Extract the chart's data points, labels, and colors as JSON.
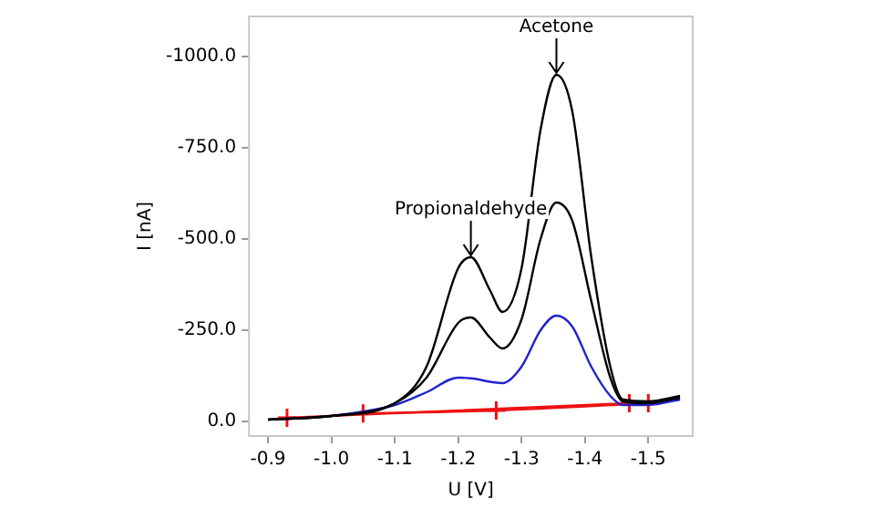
{
  "chart_data": {
    "type": "line",
    "xlabel": "U [V]",
    "ylabel": "I [nA]",
    "xlim": [
      -0.87,
      -1.57
    ],
    "ylim": [
      40,
      -1110
    ],
    "xticks": [
      {
        "value": -0.9,
        "label": "-0.9"
      },
      {
        "value": -1.0,
        "label": "-1.0"
      },
      {
        "value": -1.1,
        "label": "-1.1"
      },
      {
        "value": -1.2,
        "label": "-1.2"
      },
      {
        "value": -1.3,
        "label": "-1.3"
      },
      {
        "value": -1.4,
        "label": "-1.4"
      },
      {
        "value": -1.5,
        "label": "-1.5"
      }
    ],
    "yticks": [
      {
        "value": 0,
        "label": "0.0"
      },
      {
        "value": -250,
        "label": "-250.0"
      },
      {
        "value": -500,
        "label": "-500.0"
      },
      {
        "value": -750,
        "label": "-750.0"
      },
      {
        "value": -1000,
        "label": "-1000.0"
      }
    ],
    "grid": false,
    "legend": false,
    "marker": "none",
    "line_style": "solid",
    "annotations": [
      {
        "text": "Acetone",
        "x": -1.355,
        "y": -950
      },
      {
        "text": "Propionaldehyde",
        "x": -1.22,
        "y": -450
      }
    ],
    "series": [
      {
        "color": "#000000",
        "x": [
          -0.9,
          -1.0,
          -1.1,
          -1.15,
          -1.2,
          -1.22,
          -1.25,
          -1.27,
          -1.3,
          -1.33,
          -1.355,
          -1.38,
          -1.41,
          -1.44,
          -1.46,
          -1.5,
          -1.55
        ],
        "values": [
          -5,
          -15,
          -50,
          -150,
          -420,
          -450,
          -360,
          -300,
          -420,
          -800,
          -950,
          -850,
          -450,
          -150,
          -60,
          -55,
          -70
        ]
      },
      {
        "color": "#000000",
        "x": [
          -0.9,
          -1.0,
          -1.1,
          -1.15,
          -1.2,
          -1.22,
          -1.25,
          -1.27,
          -1.3,
          -1.33,
          -1.355,
          -1.38,
          -1.41,
          -1.44,
          -1.46,
          -1.5,
          -1.55
        ],
        "values": [
          -5,
          -15,
          -50,
          -120,
          -270,
          -285,
          -230,
          -200,
          -280,
          -500,
          -600,
          -550,
          -330,
          -120,
          -55,
          -50,
          -65
        ]
      },
      {
        "color": "#2222cc",
        "x": [
          -0.9,
          -1.0,
          -1.1,
          -1.15,
          -1.2,
          -1.22,
          -1.27,
          -1.3,
          -1.33,
          -1.355,
          -1.38,
          -1.41,
          -1.44,
          -1.46,
          -1.5,
          -1.55
        ],
        "values": [
          -5,
          -15,
          -45,
          -80,
          -120,
          -118,
          -105,
          -150,
          -250,
          -290,
          -260,
          -150,
          -70,
          -45,
          -45,
          -60
        ]
      },
      {
        "color": "#ee1111",
        "marker": "cross",
        "x": [
          -0.93,
          -1.47
        ],
        "values": [
          -10,
          -50
        ]
      },
      {
        "color": "#ee1111",
        "marker": "cross",
        "x": [
          -1.05,
          -1.26,
          -1.5
        ],
        "values": [
          -22,
          -30,
          -50
        ]
      }
    ]
  }
}
